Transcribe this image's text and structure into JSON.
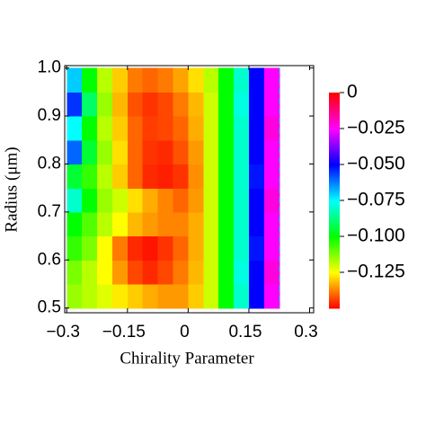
{
  "chart_data": {
    "type": "heatmap",
    "xlabel": "Chirality Parameter",
    "ylabel": "Radius (μm)",
    "xlim": [
      -0.305,
      0.31
    ],
    "ylim": [
      0.49,
      1.005
    ],
    "xticks": [
      {
        "value": -0.3,
        "label": "−0.3"
      },
      {
        "value": -0.15,
        "label": "−0.15"
      },
      0,
      0.15,
      0.3
    ],
    "yticks": [
      0.5,
      0.6,
      0.7,
      0.8,
      0.9,
      {
        "value": 1,
        "label": "1.0"
      }
    ],
    "clim": [
      -0.15,
      0
    ],
    "cticks": [
      0,
      {
        "value": -0.025,
        "label": "−0.025"
      },
      {
        "value": -0.05,
        "label": "−0.050"
      },
      {
        "value": -0.075,
        "label": "−0.075"
      },
      {
        "value": -0.1,
        "label": "−0.100"
      },
      {
        "value": -0.125,
        "label": "−0.125"
      }
    ],
    "xbins": [
      -0.3,
      -0.2625,
      -0.225,
      -0.1875,
      -0.15,
      -0.1125,
      -0.075,
      -0.0375,
      0,
      0.0375,
      0.075,
      0.1125,
      0.15,
      0.1875,
      0.225
    ],
    "ybins": [
      0.5,
      0.55,
      0.6,
      0.65,
      0.7,
      0.75,
      0.8,
      0.85,
      0.9,
      0.95,
      1
    ],
    "z": [
      [
        -0.115,
        -0.118,
        -0.122,
        -0.127,
        -0.13,
        -0.133,
        -0.135,
        -0.135,
        -0.13,
        -0.12,
        -0.1,
        -0.08,
        -0.05,
        -0.025
      ],
      [
        -0.112,
        -0.118,
        -0.125,
        -0.135,
        -0.143,
        -0.146,
        -0.143,
        -0.138,
        -0.132,
        -0.12,
        -0.1,
        -0.078,
        -0.05,
        -0.022
      ],
      [
        -0.105,
        -0.112,
        -0.125,
        -0.138,
        -0.146,
        -0.148,
        -0.145,
        -0.14,
        -0.133,
        -0.12,
        -0.1,
        -0.08,
        -0.052,
        -0.025
      ],
      [
        -0.1,
        -0.108,
        -0.118,
        -0.125,
        -0.132,
        -0.135,
        -0.137,
        -0.137,
        -0.133,
        -0.12,
        -0.1,
        -0.08,
        -0.05,
        -0.025
      ],
      [
        -0.08,
        -0.1,
        -0.115,
        -0.12,
        -0.128,
        -0.133,
        -0.137,
        -0.14,
        -0.135,
        -0.12,
        -0.1,
        -0.08,
        -0.05,
        -0.022
      ],
      [
        -0.095,
        -0.105,
        -0.118,
        -0.13,
        -0.14,
        -0.146,
        -0.147,
        -0.145,
        -0.136,
        -0.12,
        -0.1,
        -0.08,
        -0.052,
        -0.025
      ],
      [
        -0.06,
        -0.095,
        -0.115,
        -0.128,
        -0.14,
        -0.145,
        -0.146,
        -0.142,
        -0.135,
        -0.12,
        -0.1,
        -0.08,
        -0.05,
        -0.025
      ],
      [
        -0.075,
        -0.1,
        -0.118,
        -0.13,
        -0.14,
        -0.144,
        -0.143,
        -0.14,
        -0.133,
        -0.12,
        -0.1,
        -0.08,
        -0.05,
        -0.022
      ],
      [
        -0.055,
        -0.09,
        -0.115,
        -0.132,
        -0.142,
        -0.145,
        -0.143,
        -0.138,
        -0.132,
        -0.12,
        -0.1,
        -0.078,
        -0.05,
        -0.025
      ],
      [
        -0.07,
        -0.1,
        -0.118,
        -0.13,
        -0.138,
        -0.14,
        -0.138,
        -0.134,
        -0.128,
        -0.118,
        -0.1,
        -0.08,
        -0.05,
        -0.025
      ]
    ]
  }
}
